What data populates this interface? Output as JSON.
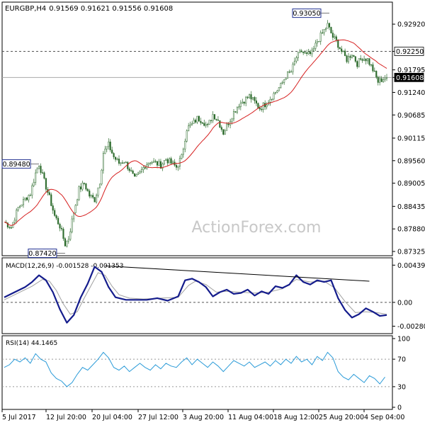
{
  "header": {
    "symbol": "EURGBP,H4",
    "ohlc": "0.91569 0.91621 0.91556 0.91608"
  },
  "watermark": "ActionForex.com",
  "colors": {
    "bullish": "#2c6b2c",
    "bearish": "#2c6b2c",
    "ma": "#d62020",
    "macd": "#141c8c",
    "signal": "#a0a0a0",
    "rsi": "#2b9bd8",
    "frame": "#000000",
    "label_border": "#1f2f90"
  },
  "chart_data": [
    {
      "type": "candlestick",
      "panel": "price",
      "ylim": [
        0.87325,
        0.9334
      ],
      "y_ticks": [
        "0.92920",
        "0.92250",
        "0.91795",
        "0.91608",
        "0.91240",
        "0.90685",
        "0.90115",
        "0.89560",
        "0.89005",
        "0.88435",
        "0.87880",
        "0.87325"
      ],
      "x_ticks": [
        "5 Jul 2017",
        "12 Jul 20:00",
        "20 Jul 04:00",
        "27 Jul 12:00",
        "3 Aug 20:00",
        "11 Aug 04:00",
        "18 Aug 12:00",
        "25 Aug 20:00",
        "4 Sep 04:00"
      ],
      "horizontal_lines": [
        0.9225,
        0.91608
      ],
      "annotations": [
        {
          "text": "0.93050",
          "value": 0.9305
        },
        {
          "text": "0.89480",
          "value": 0.8948
        },
        {
          "text": "0.87420",
          "value": 0.8742
        }
      ],
      "current_price": "0.91608",
      "level_label": "0.92250",
      "close_path": [
        [
          0,
          0.8805
        ],
        [
          4,
          0.8792
        ],
        [
          8,
          0.884
        ],
        [
          12,
          0.8862
        ],
        [
          15,
          0.8875
        ],
        [
          18,
          0.8925
        ],
        [
          20,
          0.8948
        ],
        [
          23,
          0.8905
        ],
        [
          26,
          0.8865
        ],
        [
          29,
          0.882
        ],
        [
          32,
          0.8795
        ],
        [
          35,
          0.875
        ],
        [
          37,
          0.8765
        ],
        [
          40,
          0.883
        ],
        [
          43,
          0.8885
        ],
        [
          46,
          0.89
        ],
        [
          49,
          0.887
        ],
        [
          52,
          0.886
        ],
        [
          55,
          0.8905
        ],
        [
          57,
          0.8975
        ],
        [
          60,
          0.8995
        ],
        [
          63,
          0.8965
        ],
        [
          66,
          0.895
        ],
        [
          69,
          0.8955
        ],
        [
          72,
          0.8935
        ],
        [
          75,
          0.891
        ],
        [
          78,
          0.8925
        ],
        [
          81,
          0.8945
        ],
        [
          84,
          0.8955
        ],
        [
          87,
          0.895
        ],
        [
          90,
          0.8945
        ],
        [
          93,
          0.896
        ],
        [
          96,
          0.895
        ],
        [
          99,
          0.894
        ],
        [
          102,
          0.8965
        ],
        [
          105,
          0.9035
        ],
        [
          108,
          0.9045
        ],
        [
          111,
          0.906
        ],
        [
          114,
          0.9055
        ],
        [
          117,
          0.904
        ],
        [
          120,
          0.907
        ],
        [
          123,
          0.9055
        ],
        [
          126,
          0.9025
        ],
        [
          129,
          0.905
        ],
        [
          132,
          0.9075
        ],
        [
          135,
          0.9095
        ],
        [
          138,
          0.9105
        ],
        [
          141,
          0.9115
        ],
        [
          144,
          0.91
        ],
        [
          147,
          0.9085
        ],
        [
          150,
          0.9095
        ],
        [
          153,
          0.911
        ],
        [
          156,
          0.9125
        ],
        [
          159,
          0.914
        ],
        [
          162,
          0.9165
        ],
        [
          165,
          0.9175
        ],
        [
          168,
          0.921
        ],
        [
          171,
          0.9225
        ],
        [
          174,
          0.9215
        ],
        [
          177,
          0.922
        ],
        [
          180,
          0.925
        ],
        [
          183,
          0.927
        ],
        [
          186,
          0.929
        ],
        [
          189,
          0.926
        ],
        [
          191,
          0.925
        ],
        [
          194,
          0.9225
        ],
        [
          197,
          0.9205
        ],
        [
          200,
          0.922
        ],
        [
          203,
          0.9195
        ],
        [
          206,
          0.921
        ],
        [
          209,
          0.9205
        ],
        [
          212,
          0.918
        ],
        [
          215,
          0.915
        ],
        [
          218,
          0.9158
        ],
        [
          220,
          0.9161
        ]
      ]
    },
    {
      "type": "line",
      "panel": "macd",
      "label": "MACD(12,26,9) -0.001528 -0.001353",
      "ylim": [
        -0.00335,
        0.00475
      ],
      "y_ticks": [
        "0.00439",
        "0.00",
        "-0.002809"
      ],
      "zero_line": 0,
      "series": [
        {
          "name": "MACD",
          "points": [
            [
              0,
              0.0006
            ],
            [
              6,
              0.0012
            ],
            [
              12,
              0.0018
            ],
            [
              16,
              0.0024
            ],
            [
              20,
              0.0032
            ],
            [
              24,
              0.0026
            ],
            [
              28,
              0.0012
            ],
            [
              32,
              -0.0008
            ],
            [
              36,
              -0.0024
            ],
            [
              40,
              -0.0015
            ],
            [
              44,
              0.0006
            ],
            [
              48,
              0.0022
            ],
            [
              52,
              0.0042
            ],
            [
              56,
              0.0036
            ],
            [
              60,
              0.0018
            ],
            [
              64,
              0.0006
            ],
            [
              70,
              0.0003
            ],
            [
              76,
              0.0003
            ],
            [
              82,
              0.0003
            ],
            [
              88,
              0.0005
            ],
            [
              94,
              0.0002
            ],
            [
              100,
              0.0007
            ],
            [
              104,
              0.0026
            ],
            [
              108,
              0.0028
            ],
            [
              112,
              0.0024
            ],
            [
              116,
              0.0018
            ],
            [
              120,
              0.0007
            ],
            [
              124,
              0.0012
            ],
            [
              128,
              0.0015
            ],
            [
              132,
              0.001
            ],
            [
              136,
              0.0011
            ],
            [
              140,
              0.0015
            ],
            [
              144,
              0.0008
            ],
            [
              148,
              0.0013
            ],
            [
              152,
              0.001
            ],
            [
              156,
              0.0019
            ],
            [
              160,
              0.0017
            ],
            [
              164,
              0.0021
            ],
            [
              168,
              0.0032
            ],
            [
              172,
              0.0024
            ],
            [
              176,
              0.0021
            ],
            [
              180,
              0.0026
            ],
            [
              184,
              0.0024
            ],
            [
              188,
              0.0026
            ],
            [
              192,
              0.0005
            ],
            [
              196,
              -0.0009
            ],
            [
              200,
              -0.0018
            ],
            [
              204,
              -0.0014
            ],
            [
              208,
              -0.0007
            ],
            [
              212,
              -0.0011
            ],
            [
              216,
              -0.0016
            ],
            [
              220,
              -0.0015
            ]
          ]
        },
        {
          "name": "Signal",
          "points": [
            [
              0,
              0.0003
            ],
            [
              8,
              0.0011
            ],
            [
              16,
              0.0019
            ],
            [
              22,
              0.0027
            ],
            [
              26,
              0.0025
            ],
            [
              30,
              0.0014
            ],
            [
              34,
              -0.0002
            ],
            [
              38,
              -0.0014
            ],
            [
              42,
              -0.0011
            ],
            [
              46,
              0.0005
            ],
            [
              50,
              0.002
            ],
            [
              54,
              0.0035
            ],
            [
              58,
              0.0032
            ],
            [
              62,
              0.0019
            ],
            [
              66,
              0.0009
            ],
            [
              72,
              0.0005
            ],
            [
              80,
              0.0004
            ],
            [
              90,
              0.0005
            ],
            [
              100,
              0.0006
            ],
            [
              106,
              0.002
            ],
            [
              110,
              0.0025
            ],
            [
              116,
              0.0021
            ],
            [
              122,
              0.0012
            ],
            [
              128,
              0.0013
            ],
            [
              136,
              0.0012
            ],
            [
              144,
              0.0011
            ],
            [
              152,
              0.0012
            ],
            [
              160,
              0.0016
            ],
            [
              168,
              0.0027
            ],
            [
              176,
              0.0024
            ],
            [
              184,
              0.0025
            ],
            [
              190,
              0.0017
            ],
            [
              196,
              0.0001
            ],
            [
              202,
              -0.0012
            ],
            [
              208,
              -0.0011
            ],
            [
              214,
              -0.0012
            ],
            [
              220,
              -0.0014
            ]
          ]
        }
      ],
      "trendline": [
        [
          58,
          0.0043
        ],
        [
          210,
          0.0025
        ]
      ]
    },
    {
      "type": "line",
      "panel": "rsi",
      "label": "RSI(14) 44.1465",
      "ylim": [
        0,
        100
      ],
      "y_ticks": [
        "100",
        "70",
        "30",
        "0"
      ],
      "levels": [
        70,
        30
      ],
      "series": [
        {
          "name": "RSI",
          "points": [
            [
              0,
              58
            ],
            [
              3,
              62
            ],
            [
              6,
              70
            ],
            [
              9,
              66
            ],
            [
              12,
              72
            ],
            [
              15,
              64
            ],
            [
              18,
              78
            ],
            [
              21,
              70
            ],
            [
              24,
              66
            ],
            [
              27,
              50
            ],
            [
              30,
              42
            ],
            [
              33,
              38
            ],
            [
              36,
              30
            ],
            [
              39,
              36
            ],
            [
              42,
              48
            ],
            [
              45,
              58
            ],
            [
              48,
              54
            ],
            [
              51,
              62
            ],
            [
              54,
              70
            ],
            [
              57,
              80
            ],
            [
              60,
              72
            ],
            [
              63,
              58
            ],
            [
              66,
              54
            ],
            [
              69,
              60
            ],
            [
              72,
              52
            ],
            [
              75,
              58
            ],
            [
              78,
              64
            ],
            [
              81,
              58
            ],
            [
              84,
              54
            ],
            [
              87,
              62
            ],
            [
              90,
              56
            ],
            [
              93,
              64
            ],
            [
              96,
              60
            ],
            [
              99,
              58
            ],
            [
              102,
              66
            ],
            [
              105,
              72
            ],
            [
              108,
              62
            ],
            [
              111,
              70
            ],
            [
              114,
              64
            ],
            [
              117,
              58
            ],
            [
              120,
              66
            ],
            [
              123,
              60
            ],
            [
              126,
              52
            ],
            [
              129,
              60
            ],
            [
              132,
              68
            ],
            [
              135,
              64
            ],
            [
              138,
              60
            ],
            [
              141,
              66
            ],
            [
              144,
              58
            ],
            [
              147,
              62
            ],
            [
              150,
              66
            ],
            [
              153,
              60
            ],
            [
              156,
              68
            ],
            [
              159,
              62
            ],
            [
              162,
              70
            ],
            [
              165,
              64
            ],
            [
              168,
              74
            ],
            [
              171,
              66
            ],
            [
              174,
              70
            ],
            [
              177,
              62
            ],
            [
              180,
              74
            ],
            [
              183,
              68
            ],
            [
              186,
              80
            ],
            [
              189,
              72
            ],
            [
              192,
              52
            ],
            [
              195,
              44
            ],
            [
              198,
              40
            ],
            [
              201,
              48
            ],
            [
              204,
              42
            ],
            [
              207,
              36
            ],
            [
              210,
              46
            ],
            [
              213,
              42
            ],
            [
              216,
              34
            ],
            [
              219,
              44
            ]
          ]
        }
      ]
    }
  ]
}
